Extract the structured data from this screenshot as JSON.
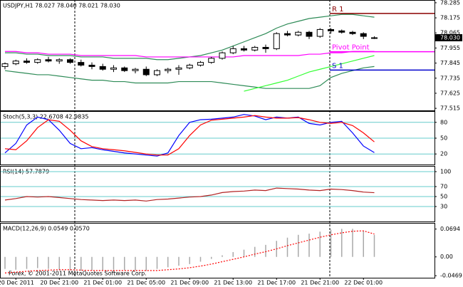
{
  "chart_data": [
    {
      "type": "candlestick",
      "title": "USDJPY,H1  78.027 78.040 78.021 78.030",
      "categories": [
        null,
        "20 Dec 2011",
        null,
        null,
        null,
        "20 Dec 21:00",
        null,
        null,
        null,
        "21 Dec 01:00",
        null,
        null,
        null,
        "21 Dec 05:00",
        null,
        null,
        null,
        "21 Dec 09:00",
        null,
        null,
        null,
        "21 Dec 13:00",
        null,
        null,
        null,
        "21 Dec 17:00",
        null,
        null,
        null,
        "21 Dec 21:00",
        null,
        null,
        null,
        "22 Dec 01:00",
        null
      ],
      "open": [
        77.82,
        77.84,
        77.86,
        77.85,
        77.87,
        77.86,
        77.87,
        77.85,
        77.83,
        77.82,
        77.8,
        77.81,
        77.79,
        77.8,
        77.76,
        77.79,
        77.8,
        77.81,
        77.83,
        77.85,
        77.88,
        77.92,
        77.95,
        77.94,
        77.96,
        77.95,
        78.06,
        78.05,
        78.07,
        78.04,
        78.09,
        78.08,
        78.07,
        78.06,
        78.027
      ],
      "high": [
        77.85,
        77.87,
        77.88,
        77.88,
        77.89,
        77.88,
        77.88,
        77.87,
        77.85,
        77.84,
        77.83,
        77.82,
        77.81,
        77.82,
        77.8,
        77.81,
        77.83,
        77.84,
        77.86,
        77.89,
        77.93,
        77.97,
        77.97,
        77.97,
        77.98,
        78.07,
        78.08,
        78.08,
        78.08,
        78.1,
        78.1,
        78.09,
        78.08,
        78.07,
        78.04
      ],
      "low": [
        77.8,
        77.83,
        77.84,
        77.84,
        77.85,
        77.84,
        77.84,
        77.82,
        77.8,
        77.79,
        77.78,
        77.78,
        77.77,
        77.75,
        77.75,
        77.77,
        77.76,
        77.8,
        77.82,
        77.84,
        77.87,
        77.91,
        77.93,
        77.93,
        77.92,
        77.94,
        78.04,
        78.04,
        78.02,
        78.03,
        78.06,
        78.06,
        78.05,
        78.02,
        78.021
      ],
      "close": [
        77.84,
        77.86,
        77.85,
        77.87,
        77.86,
        77.87,
        77.85,
        77.83,
        77.82,
        77.8,
        77.81,
        77.79,
        77.8,
        77.76,
        77.79,
        77.8,
        77.81,
        77.83,
        77.85,
        77.88,
        77.92,
        77.95,
        77.94,
        77.96,
        77.95,
        78.06,
        78.05,
        78.07,
        78.04,
        78.09,
        78.08,
        78.07,
        78.06,
        78.04,
        78.03
      ],
      "up_color": "#ffffff",
      "down_color": "#000000",
      "ylim": [
        77.5,
        78.3
      ],
      "yticks": [
        78.285,
        78.175,
        78.065,
        77.955,
        77.845,
        77.735,
        77.625,
        77.515
      ],
      "last_price": {
        "value": 78.03,
        "label": "78.030"
      },
      "series": [
        {
          "color": "#2e8b57",
          "values": [
            77.92,
            77.92,
            77.91,
            77.91,
            77.9,
            77.9,
            77.9,
            77.89,
            77.89,
            77.89,
            77.88,
            77.88,
            77.88,
            77.88,
            77.87,
            77.87,
            77.88,
            77.89,
            77.9,
            77.92,
            77.94,
            77.97,
            78.0,
            78.03,
            78.06,
            78.1,
            78.13,
            78.15,
            78.17,
            78.18,
            78.19,
            78.2,
            78.2,
            78.19,
            78.18
          ]
        },
        {
          "color": "#2e8b57",
          "values": [
            77.79,
            77.78,
            77.77,
            77.76,
            77.76,
            77.75,
            77.74,
            77.73,
            77.72,
            77.72,
            77.71,
            77.71,
            77.7,
            77.7,
            77.7,
            77.7,
            77.71,
            77.71,
            77.71,
            77.71,
            77.7,
            77.69,
            77.68,
            77.67,
            77.66,
            77.66,
            77.66,
            77.66,
            77.66,
            77.68,
            77.74,
            77.77,
            77.79,
            77.81,
            77.82
          ]
        },
        {
          "color": "#ff00ff",
          "values": [
            77.93,
            77.93,
            77.92,
            77.92,
            77.91,
            77.91,
            77.91,
            77.9,
            77.9,
            77.9,
            77.9,
            77.9,
            77.9,
            77.89,
            77.89,
            77.89,
            77.89,
            77.89,
            77.89,
            77.89,
            77.89,
            77.89,
            77.9,
            77.9,
            77.9,
            77.9,
            77.9,
            77.9,
            77.91,
            77.91,
            77.92,
            77.92,
            77.93,
            77.93,
            77.93
          ]
        },
        {
          "color": "#33ff33",
          "values": [
            null,
            null,
            null,
            null,
            null,
            null,
            null,
            null,
            null,
            null,
            null,
            null,
            null,
            null,
            null,
            null,
            null,
            null,
            null,
            null,
            null,
            null,
            77.64,
            77.66,
            77.68,
            77.7,
            77.72,
            77.75,
            77.78,
            77.8,
            77.82,
            77.84,
            77.86,
            77.88,
            77.9
          ]
        }
      ],
      "levels": [
        {
          "name": "R 1",
          "value": 78.207,
          "color": "#8b0000"
        },
        {
          "name": "Pivot Point",
          "value": 77.928,
          "color": "#ff00ff"
        },
        {
          "name": "S 1",
          "value": 77.794,
          "color": "#0000cd"
        }
      ]
    },
    {
      "type": "line",
      "title": "Stoch(5,3,3) 22.6708 42.9835",
      "ylim": [
        0,
        100
      ],
      "yticks": [
        20,
        50,
        80
      ],
      "grid": true,
      "grid_color": "#66cccc",
      "series": [
        {
          "color": "#0000ff",
          "values": [
            22,
            40,
            75,
            90,
            85,
            65,
            40,
            30,
            32,
            28,
            25,
            22,
            20,
            18,
            16,
            22,
            55,
            80,
            85,
            86,
            88,
            90,
            95,
            92,
            85,
            90,
            88,
            90,
            78,
            75,
            80,
            82,
            60,
            35,
            22.6708
          ]
        },
        {
          "color": "#ff0000",
          "values": [
            30,
            28,
            45,
            70,
            85,
            82,
            65,
            45,
            34,
            30,
            28,
            26,
            23,
            20,
            18,
            18,
            30,
            55,
            75,
            84,
            86,
            88,
            90,
            93,
            90,
            88,
            88,
            89,
            85,
            80,
            78,
            80,
            74,
            60,
            42.9835
          ]
        }
      ]
    },
    {
      "type": "line",
      "title": "RSI(14) 57.7879",
      "ylim": [
        0,
        110
      ],
      "yticks": [
        30,
        50,
        70,
        100
      ],
      "grid": true,
      "grid_color": "#66cccc",
      "series": [
        {
          "color": "#b22222",
          "values": [
            43,
            46,
            50,
            49,
            50,
            48,
            46,
            44,
            43,
            42,
            43,
            42,
            43,
            41,
            44,
            45,
            47,
            49,
            50,
            53,
            58,
            60,
            61,
            63,
            62,
            67,
            66,
            65,
            63,
            62,
            65,
            64,
            62,
            59,
            57.7879
          ]
        }
      ]
    },
    {
      "type": "macd",
      "title": "MACD(12,26,9) 0.0549 0.0570",
      "ylim": [
        -0.052,
        0.083
      ],
      "yticks": [
        -0.0469,
        {
          "value": 0,
          "label": "0.00"
        },
        0.0694
      ],
      "series": [
        {
          "color": "#a9a9a9",
          "values": [
            -0.03,
            -0.032,
            -0.03,
            -0.028,
            -0.03,
            -0.032,
            -0.034,
            -0.035,
            -0.034,
            -0.033,
            -0.032,
            -0.033,
            -0.034,
            -0.035,
            -0.03,
            -0.026,
            -0.022,
            -0.018,
            -0.012,
            -0.005,
            0.004,
            0.012,
            0.018,
            0.025,
            0.03,
            0.04,
            0.048,
            0.055,
            0.058,
            0.063,
            0.068,
            0.07,
            0.07,
            0.065,
            0.0549
          ]
        },
        {
          "color": "#ff0000",
          "values": [
            -0.04,
            -0.038,
            -0.036,
            -0.034,
            -0.033,
            -0.032,
            -0.032,
            -0.033,
            -0.034,
            -0.034,
            -0.034,
            -0.034,
            -0.034,
            -0.034,
            -0.034,
            -0.032,
            -0.03,
            -0.027,
            -0.023,
            -0.018,
            -0.012,
            -0.006,
            0,
            0.007,
            0.013,
            0.02,
            0.028,
            0.035,
            0.042,
            0.049,
            0.055,
            0.06,
            0.064,
            0.065,
            0.057
          ]
        }
      ]
    }
  ],
  "footer": "Forex, © 2001-2011 MetaQuotes Software Corp."
}
